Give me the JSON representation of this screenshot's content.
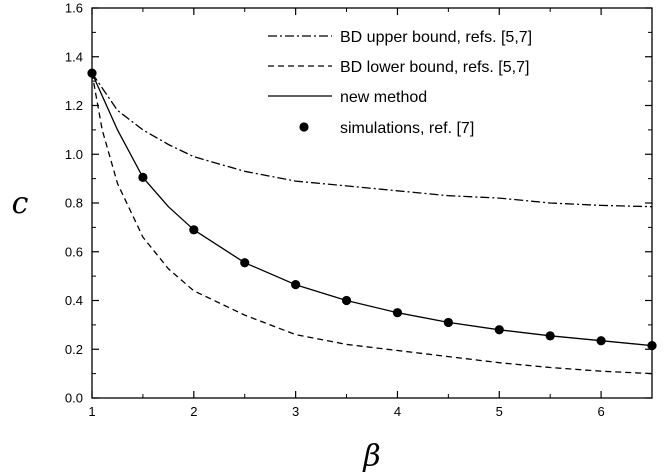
{
  "chart_data": {
    "type": "line",
    "xlabel": "β",
    "ylabel": "c",
    "xlim": [
      1,
      6.5
    ],
    "ylim": [
      0,
      1.6
    ],
    "x_ticks": [
      "1",
      "2",
      "3",
      "4",
      "5",
      "6"
    ],
    "y_ticks": [
      "0.0",
      "0.2",
      "0.4",
      "0.6",
      "0.8",
      "1.0",
      "1.2",
      "1.4",
      "1.6"
    ],
    "grid": false,
    "legend_position": "top-right",
    "series": [
      {
        "name": "BD upper bound, refs. [5,7]",
        "style": "dash-dot",
        "color": "#000000",
        "x": [
          1,
          1.25,
          1.5,
          1.75,
          2,
          2.5,
          3,
          3.5,
          4,
          4.5,
          5,
          5.5,
          6,
          6.5
        ],
        "y": [
          1.333,
          1.18,
          1.1,
          1.04,
          0.99,
          0.93,
          0.89,
          0.87,
          0.85,
          0.83,
          0.82,
          0.8,
          0.79,
          0.785
        ]
      },
      {
        "name": "BD lower bound, refs. [5,7]",
        "style": "dashed",
        "color": "#000000",
        "x": [
          1,
          1.1,
          1.25,
          1.5,
          1.75,
          2,
          2.5,
          3,
          3.5,
          4,
          4.5,
          5,
          5.5,
          6,
          6.5
        ],
        "y": [
          1.333,
          1.1,
          0.88,
          0.66,
          0.53,
          0.44,
          0.34,
          0.26,
          0.22,
          0.195,
          0.17,
          0.145,
          0.125,
          0.11,
          0.1
        ]
      },
      {
        "name": "new method",
        "style": "solid",
        "color": "#000000",
        "x": [
          1,
          1.25,
          1.5,
          1.75,
          2,
          2.5,
          3,
          3.5,
          4,
          4.5,
          5,
          5.5,
          6,
          6.5
        ],
        "y": [
          1.333,
          1.1,
          0.905,
          0.785,
          0.69,
          0.555,
          0.465,
          0.4,
          0.35,
          0.31,
          0.28,
          0.255,
          0.235,
          0.215
        ]
      },
      {
        "name": "simulations, ref. [7]",
        "style": "markers",
        "color": "#000000",
        "x": [
          1,
          1.5,
          2,
          2.5,
          3,
          3.5,
          4,
          4.5,
          5,
          5.5,
          6,
          6.5
        ],
        "y": [
          1.333,
          0.905,
          0.69,
          0.555,
          0.465,
          0.4,
          0.35,
          0.31,
          0.28,
          0.255,
          0.235,
          0.215
        ]
      }
    ]
  }
}
